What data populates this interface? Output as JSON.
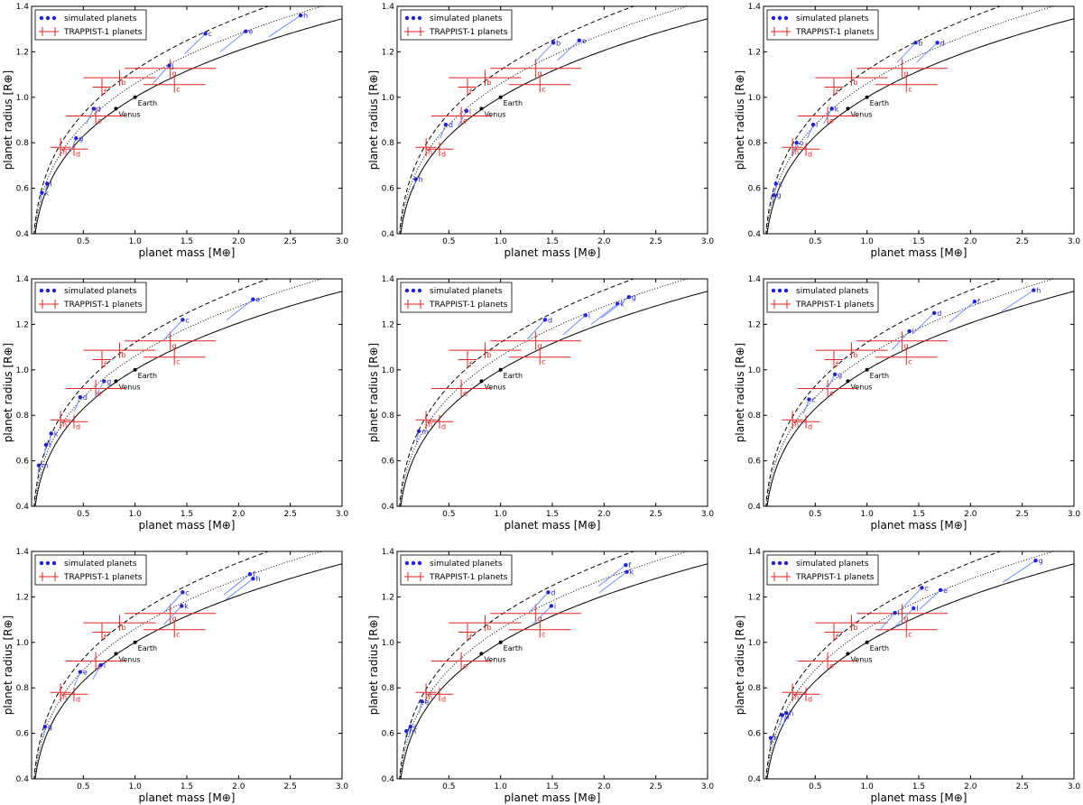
{
  "figure": {
    "description_rows": 3,
    "description_cols": 3
  },
  "common": {
    "xlabel": "planet mass [M⊕]",
    "ylabel": "planet radius [R⊕]",
    "xlim": [
      0.0,
      3.0
    ],
    "ylim": [
      0.4,
      1.4
    ],
    "xticks": [
      "0.5",
      "1.0",
      "1.5",
      "2.0",
      "2.5",
      "3.0"
    ],
    "xtick_values": [
      0.5,
      1.0,
      1.5,
      2.0,
      2.5,
      3.0
    ],
    "yticks": [
      "0.4",
      "0.6",
      "0.8",
      "1.0",
      "1.2",
      "1.4"
    ],
    "ytick_values": [
      0.4,
      0.6,
      0.8,
      1.0,
      1.2,
      1.4
    ],
    "legend": {
      "location": "top-left",
      "simulated_label": "simulated planets",
      "trappist_label": "TRAPPIST-1 planets"
    },
    "colors": {
      "simulated": "#1f1fe6",
      "track": "#6f8fff",
      "trappist": "#e8231e",
      "curves": "#000000"
    },
    "reference_points": [
      {
        "name": "Earth",
        "mass": 1.0,
        "radius": 1.0
      },
      {
        "name": "Venus",
        "mass": 0.815,
        "radius": 0.95
      }
    ],
    "trappist_planets": [
      {
        "name": "b",
        "mass": 0.85,
        "mass_err": 0.7,
        "radius": 1.086,
        "radius_err": 0.035
      },
      {
        "name": "c",
        "mass": 1.38,
        "mass_err": 0.6,
        "radius": 1.056,
        "radius_err": 0.035
      },
      {
        "name": "d",
        "mass": 0.41,
        "mass_err": 0.27,
        "radius": 0.772,
        "radius_err": 0.03
      },
      {
        "name": "e",
        "mass": 0.62,
        "mass_err": 0.58,
        "radius": 0.918,
        "radius_err": 0.039
      },
      {
        "name": "f",
        "mass": 0.68,
        "mass_err": 0.18,
        "radius": 1.045,
        "radius_err": 0.038
      },
      {
        "name": "g",
        "mass": 1.34,
        "mass_err": 0.88,
        "radius": 1.127,
        "radius_err": 0.041
      },
      {
        "name": "h",
        "mass": 0.28,
        "mass_err": 0.2,
        "radius": 0.78,
        "radius_err": 0.04
      }
    ],
    "curves": [
      {
        "name": "solid",
        "coeff": 1.0,
        "style": "solid"
      },
      {
        "name": "dotted",
        "coeff": 1.06,
        "style": "dotted"
      },
      {
        "name": "dashed",
        "coeff": 1.12,
        "style": "dashed"
      }
    ]
  },
  "chart_data": [
    {
      "type": "scatter",
      "panel": 1,
      "simulated": [
        {
          "name": "k",
          "mass": 0.1,
          "radius": 0.58
        },
        {
          "name": "l",
          "mass": 0.15,
          "radius": 0.62
        },
        {
          "name": "g",
          "mass": 0.43,
          "radius": 0.82
        },
        {
          "name": "d",
          "mass": 0.6,
          "radius": 0.95
        },
        {
          "name": "j",
          "mass": 1.33,
          "radius": 1.14
        },
        {
          "name": "c",
          "mass": 1.68,
          "radius": 1.28
        },
        {
          "name": "e",
          "mass": 2.07,
          "radius": 1.29
        },
        {
          "name": "h",
          "mass": 2.6,
          "radius": 1.36
        }
      ]
    },
    {
      "type": "scatter",
      "panel": 2,
      "simulated": [
        {
          "name": "h",
          "mass": 0.18,
          "radius": 0.64
        },
        {
          "name": "d",
          "mass": 0.47,
          "radius": 0.88
        },
        {
          "name": "i",
          "mass": 0.67,
          "radius": 0.94
        },
        {
          "name": "b",
          "mass": 1.51,
          "radius": 1.24
        },
        {
          "name": "e",
          "mass": 1.76,
          "radius": 1.25
        }
      ]
    },
    {
      "type": "scatter",
      "panel": 3,
      "simulated": [
        {
          "name": "g",
          "mass": 0.1,
          "radius": 0.57
        },
        {
          "name": "c",
          "mass": 0.12,
          "radius": 0.62
        },
        {
          "name": "o",
          "mass": 0.32,
          "radius": 0.8
        },
        {
          "name": "i",
          "mass": 0.48,
          "radius": 0.88
        },
        {
          "name": "k",
          "mass": 0.66,
          "radius": 0.95
        },
        {
          "name": "b",
          "mass": 1.47,
          "radius": 1.24
        },
        {
          "name": "d",
          "mass": 1.68,
          "radius": 1.24
        }
      ]
    },
    {
      "type": "scatter",
      "panel": 4,
      "simulated": [
        {
          "name": "m",
          "mass": 0.07,
          "radius": 0.58
        },
        {
          "name": "l",
          "mass": 0.14,
          "radius": 0.67
        },
        {
          "name": "k",
          "mass": 0.19,
          "radius": 0.72
        },
        {
          "name": "d",
          "mass": 0.47,
          "radius": 0.88
        },
        {
          "name": "g",
          "mass": 0.7,
          "radius": 0.95
        },
        {
          "name": "c",
          "mass": 1.46,
          "radius": 1.22
        },
        {
          "name": "e",
          "mass": 2.14,
          "radius": 1.31
        }
      ]
    },
    {
      "type": "scatter",
      "panel": 5,
      "simulated": [
        {
          "name": "m",
          "mass": 0.21,
          "radius": 0.73
        },
        {
          "name": "d",
          "mass": 1.43,
          "radius": 1.22
        },
        {
          "name": "i",
          "mass": 1.82,
          "radius": 1.24
        },
        {
          "name": "k",
          "mass": 2.13,
          "radius": 1.29
        },
        {
          "name": "g",
          "mass": 2.24,
          "radius": 1.32
        }
      ]
    },
    {
      "type": "scatter",
      "panel": 6,
      "simulated": [
        {
          "name": "c",
          "mass": 0.44,
          "radius": 0.87
        },
        {
          "name": "g",
          "mass": 0.69,
          "radius": 0.98
        },
        {
          "name": "i",
          "mass": 1.41,
          "radius": 1.17
        },
        {
          "name": "d",
          "mass": 1.65,
          "radius": 1.25
        },
        {
          "name": "f",
          "mass": 2.04,
          "radius": 1.3
        },
        {
          "name": "h",
          "mass": 2.61,
          "radius": 1.35
        }
      ]
    },
    {
      "type": "scatter",
      "panel": 7,
      "simulated": [
        {
          "name": "g",
          "mass": 0.13,
          "radius": 0.63
        },
        {
          "name": "e",
          "mass": 0.47,
          "radius": 0.87
        },
        {
          "name": "i",
          "mass": 0.67,
          "radius": 0.9
        },
        {
          "name": "c",
          "mass": 1.46,
          "radius": 1.22
        },
        {
          "name": "k",
          "mass": 1.45,
          "radius": 1.16
        },
        {
          "name": "f",
          "mass": 2.11,
          "radius": 1.3
        },
        {
          "name": "h",
          "mass": 2.14,
          "radius": 1.28
        }
      ]
    },
    {
      "type": "scatter",
      "panel": 8,
      "simulated": [
        {
          "name": "c",
          "mass": 0.13,
          "radius": 0.63
        },
        {
          "name": "m",
          "mass": 0.09,
          "radius": 0.61
        },
        {
          "name": "e",
          "mass": 0.24,
          "radius": 0.74
        },
        {
          "name": "d",
          "mass": 1.46,
          "radius": 1.22
        },
        {
          "name": "i",
          "mass": 1.49,
          "radius": 1.16
        },
        {
          "name": "f",
          "mass": 2.21,
          "radius": 1.34
        },
        {
          "name": "k",
          "mass": 2.22,
          "radius": 1.31
        }
      ]
    },
    {
      "type": "scatter",
      "panel": 9,
      "simulated": [
        {
          "name": "k",
          "mass": 0.07,
          "radius": 0.58
        },
        {
          "name": "g",
          "mass": 0.18,
          "radius": 0.68
        },
        {
          "name": "h",
          "mass": 0.22,
          "radius": 0.69
        },
        {
          "name": "i",
          "mass": 1.27,
          "radius": 1.13
        },
        {
          "name": "l",
          "mass": 1.45,
          "radius": 1.15
        },
        {
          "name": "c",
          "mass": 1.53,
          "radius": 1.24
        },
        {
          "name": "e",
          "mass": 1.71,
          "radius": 1.23
        },
        {
          "name": "g",
          "mass": 2.63,
          "radius": 1.36
        }
      ]
    }
  ]
}
